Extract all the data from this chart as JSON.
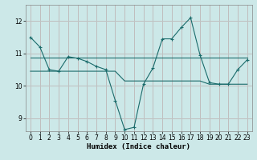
{
  "xlabel": "Humidex (Indice chaleur)",
  "bg_color": "#cce8e8",
  "grid_color_major": "#e08080",
  "grid_color_minor": "#b8d8d8",
  "line_color": "#1a6b6b",
  "xlim": [
    -0.5,
    23.5
  ],
  "ylim": [
    8.6,
    12.5
  ],
  "yticks": [
    9,
    10,
    11,
    12
  ],
  "xticks": [
    0,
    1,
    2,
    3,
    4,
    5,
    6,
    7,
    8,
    9,
    10,
    11,
    12,
    13,
    14,
    15,
    16,
    17,
    18,
    19,
    20,
    21,
    22,
    23
  ],
  "line1_x": [
    0,
    1,
    2,
    3,
    4,
    5,
    6,
    7,
    8,
    9,
    10,
    11,
    12,
    13,
    14,
    15,
    16,
    17,
    18,
    19,
    20,
    21,
    22,
    23
  ],
  "line1_y": [
    11.5,
    11.2,
    10.5,
    10.45,
    10.9,
    10.85,
    10.75,
    10.6,
    10.5,
    9.55,
    8.65,
    8.72,
    10.05,
    10.55,
    11.45,
    11.45,
    11.8,
    12.1,
    10.95,
    10.1,
    10.05,
    10.05,
    10.5,
    10.8
  ],
  "line2_x": [
    0,
    1,
    2,
    3,
    4,
    5,
    6,
    7,
    8,
    9,
    10,
    11,
    12,
    13,
    14,
    15,
    16,
    17,
    18,
    19,
    20,
    21,
    22,
    23
  ],
  "line2_y": [
    10.88,
    10.88,
    10.88,
    10.88,
    10.88,
    10.88,
    10.88,
    10.88,
    10.88,
    10.88,
    10.88,
    10.88,
    10.88,
    10.88,
    10.88,
    10.88,
    10.88,
    10.88,
    10.88,
    10.88,
    10.88,
    10.88,
    10.88,
    10.88
  ],
  "line3_x": [
    0,
    1,
    2,
    3,
    4,
    5,
    6,
    7,
    8,
    9,
    10,
    11,
    12,
    13,
    14,
    15,
    16,
    17,
    18,
    19,
    20,
    21,
    22,
    23
  ],
  "line3_y": [
    10.45,
    10.45,
    10.45,
    10.45,
    10.45,
    10.45,
    10.45,
    10.45,
    10.45,
    10.45,
    10.15,
    10.15,
    10.15,
    10.15,
    10.15,
    10.15,
    10.15,
    10.15,
    10.15,
    10.05,
    10.05,
    10.05,
    10.05,
    10.05
  ]
}
